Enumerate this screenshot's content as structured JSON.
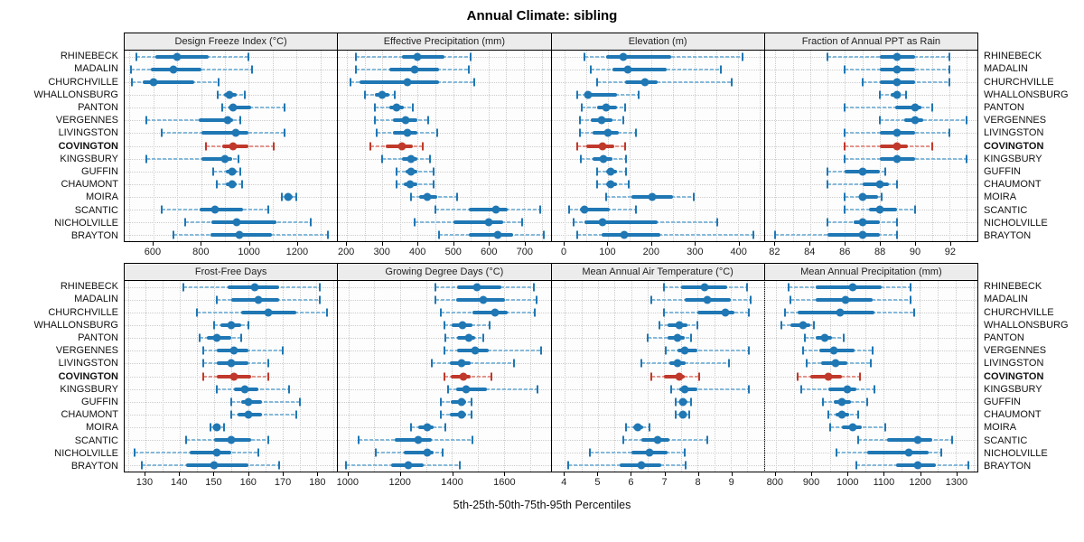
{
  "title": "Annual Climate: sibling",
  "caption": "5th-25th-50th-75th-95th Percentiles",
  "chart_data": {
    "type": "dotplot",
    "subtype": "percentile-interval-plot",
    "percentiles": [
      5,
      25,
      50,
      75,
      95
    ],
    "legend_position": "none",
    "grid": "dotted",
    "sites": [
      "RHINEBECK",
      "MADALIN",
      "CHURCHVILLE",
      "WHALLONSBURG",
      "PANTON",
      "VERGENNES",
      "LIVINGSTON",
      "COVINGTON",
      "KINGSBURY",
      "GUFFIN",
      "CHAUMONT",
      "MOIRA",
      "SCANTIC",
      "NICHOLVILLE",
      "BRAYTON"
    ],
    "highlight_site": "COVINGTON",
    "colors": {
      "series": "#1f77b4",
      "series_light": "#85b9da",
      "highlight": "#c0392b",
      "highlight_light": "#e2958d",
      "grid": "#cccccc",
      "strip_bg": "#ececec",
      "border": "#000000"
    },
    "panels": [
      {
        "title": "Design Freeze Index (°C)",
        "xlim": [
          480,
          1370
        ],
        "ticks": [
          600,
          800,
          1000,
          1200
        ],
        "rows": [
          [
            530,
            610,
            700,
            830,
            1000
          ],
          [
            505,
            590,
            685,
            800,
            1015
          ],
          [
            510,
            555,
            600,
            770,
            875
          ],
          [
            870,
            895,
            920,
            950,
            985
          ],
          [
            890,
            915,
            935,
            1010,
            1150
          ],
          [
            570,
            790,
            910,
            935,
            965
          ],
          [
            635,
            800,
            945,
            1000,
            1150
          ],
          [
            820,
            890,
            935,
            1000,
            1105
          ],
          [
            570,
            800,
            900,
            930,
            955
          ],
          [
            850,
            905,
            930,
            950,
            965
          ],
          [
            865,
            905,
            930,
            950,
            970
          ],
          [
            1140,
            1155,
            1165,
            1185,
            1200
          ],
          [
            635,
            795,
            860,
            975,
            1080
          ],
          [
            735,
            845,
            950,
            1115,
            1260
          ],
          [
            685,
            840,
            960,
            1095,
            1330
          ]
        ]
      },
      {
        "title": "Effective Precipitation (mm)",
        "xlim": [
          175,
          775
        ],
        "ticks": [
          200,
          300,
          400,
          500,
          600,
          700
        ],
        "rows": [
          [
            225,
            355,
            400,
            475,
            550
          ],
          [
            225,
            320,
            390,
            460,
            545
          ],
          [
            210,
            235,
            370,
            460,
            560
          ],
          [
            250,
            280,
            300,
            320,
            335
          ],
          [
            280,
            320,
            340,
            360,
            385
          ],
          [
            280,
            330,
            365,
            400,
            430
          ],
          [
            285,
            330,
            370,
            400,
            455
          ],
          [
            265,
            310,
            355,
            385,
            415
          ],
          [
            300,
            355,
            380,
            400,
            435
          ],
          [
            340,
            365,
            380,
            400,
            445
          ],
          [
            340,
            360,
            378,
            400,
            445
          ],
          [
            380,
            405,
            428,
            455,
            510
          ],
          [
            450,
            545,
            620,
            655,
            745
          ],
          [
            390,
            500,
            600,
            640,
            695
          ],
          [
            460,
            545,
            625,
            670,
            755
          ]
        ]
      },
      {
        "title": "Elevation (m)",
        "xlim": [
          -30,
          460
        ],
        "ticks": [
          0,
          100,
          200,
          300,
          400
        ],
        "rows": [
          [
            45,
            95,
            135,
            245,
            410
          ],
          [
            60,
            110,
            145,
            235,
            360
          ],
          [
            75,
            140,
            185,
            215,
            385
          ],
          [
            30,
            45,
            55,
            120,
            170
          ],
          [
            40,
            75,
            95,
            120,
            140
          ],
          [
            35,
            60,
            85,
            110,
            135
          ],
          [
            35,
            65,
            100,
            125,
            165
          ],
          [
            30,
            50,
            87,
            115,
            140
          ],
          [
            38,
            65,
            90,
            110,
            142
          ],
          [
            75,
            95,
            107,
            120,
            142
          ],
          [
            75,
            95,
            107,
            122,
            148
          ],
          [
            95,
            155,
            202,
            250,
            298
          ],
          [
            10,
            35,
            45,
            105,
            165
          ],
          [
            20,
            45,
            88,
            215,
            352
          ],
          [
            30,
            85,
            137,
            220,
            435
          ]
        ]
      },
      {
        "title": "Fraction of Annual PPT as Rain",
        "xlim": [
          81.4,
          93.6
        ],
        "ticks": [
          82,
          84,
          86,
          88,
          90,
          92
        ],
        "rows": [
          [
            85,
            88,
            89,
            90,
            92
          ],
          [
            86,
            88,
            89,
            90,
            92
          ],
          [
            87,
            88,
            89,
            90,
            92
          ],
          [
            88,
            88.6,
            89,
            89.2,
            89.5
          ],
          [
            86,
            88.9,
            90,
            90.4,
            91
          ],
          [
            88,
            89.4,
            90,
            90.5,
            93
          ],
          [
            86,
            88,
            89,
            90,
            92
          ],
          [
            86,
            88,
            89,
            89.6,
            91
          ],
          [
            86,
            88,
            89,
            90,
            93
          ],
          [
            85,
            86,
            87,
            88,
            88.3
          ],
          [
            85,
            87,
            88,
            88.5,
            89
          ],
          [
            86,
            86.8,
            87,
            87.9,
            88.1
          ],
          [
            86,
            87.4,
            88,
            89,
            90
          ],
          [
            85,
            86.5,
            87,
            88,
            89
          ],
          [
            82,
            85,
            87,
            88,
            89
          ]
        ]
      },
      {
        "title": "Frost-Free Days",
        "xlim": [
          124,
          186
        ],
        "ticks": [
          130,
          140,
          150,
          160,
          170,
          180
        ],
        "rows": [
          [
            141,
            154,
            162,
            169,
            181
          ],
          [
            151,
            155,
            163,
            169,
            181
          ],
          [
            145,
            158,
            166,
            174,
            183
          ],
          [
            150,
            152,
            155,
            158,
            160
          ],
          [
            146,
            148,
            151,
            155,
            158
          ],
          [
            147,
            151,
            156,
            160,
            170
          ],
          [
            147,
            151,
            155,
            160,
            166
          ],
          [
            147,
            151,
            156,
            161,
            166
          ],
          [
            151,
            156,
            159,
            163,
            172
          ],
          [
            155,
            158,
            160,
            164,
            175
          ],
          [
            155,
            157,
            160,
            164,
            174
          ],
          [
            149,
            150,
            151,
            152,
            153
          ],
          [
            142,
            150,
            155,
            161,
            166
          ],
          [
            127,
            143,
            151,
            155,
            163
          ],
          [
            129,
            142,
            150,
            160,
            169
          ]
        ]
      },
      {
        "title": "Growing Degree Days (°C)",
        "xlim": [
          960,
          1780
        ],
        "ticks": [
          1000,
          1200,
          1400,
          1600
        ],
        "rows": [
          [
            1335,
            1420,
            1495,
            1590,
            1715
          ],
          [
            1335,
            1415,
            1520,
            1605,
            1725
          ],
          [
            1355,
            1480,
            1565,
            1615,
            1720
          ],
          [
            1370,
            1400,
            1440,
            1480,
            1545
          ],
          [
            1375,
            1420,
            1465,
            1490,
            1520
          ],
          [
            1370,
            1420,
            1490,
            1540,
            1745
          ],
          [
            1320,
            1390,
            1435,
            1470,
            1640
          ],
          [
            1370,
            1395,
            1445,
            1470,
            1550
          ],
          [
            1385,
            1415,
            1455,
            1535,
            1730
          ],
          [
            1355,
            1395,
            1435,
            1455,
            1475
          ],
          [
            1355,
            1390,
            1435,
            1455,
            1475
          ],
          [
            1240,
            1270,
            1305,
            1330,
            1375
          ],
          [
            1040,
            1180,
            1270,
            1320,
            1480
          ],
          [
            1105,
            1215,
            1305,
            1330,
            1365
          ],
          [
            990,
            1165,
            1230,
            1290,
            1430
          ]
        ]
      },
      {
        "title": "Mean Annual Air Temperature (°C)",
        "xlim": [
          3.6,
          10.0
        ],
        "ticks": [
          4,
          5,
          6,
          7,
          8,
          9
        ],
        "rows": [
          [
            7.0,
            7.5,
            8.2,
            8.9,
            9.5
          ],
          [
            6.6,
            7.6,
            8.3,
            9.0,
            9.6
          ],
          [
            7.0,
            8.0,
            8.85,
            9.1,
            9.55
          ],
          [
            6.85,
            7.1,
            7.45,
            7.7,
            8.0
          ],
          [
            6.5,
            7.1,
            7.4,
            7.6,
            7.8
          ],
          [
            7.05,
            7.4,
            7.6,
            8.0,
            9.55
          ],
          [
            6.3,
            7.15,
            7.4,
            7.65,
            8.95
          ],
          [
            6.6,
            7.0,
            7.45,
            7.6,
            8.05
          ],
          [
            7.2,
            7.45,
            7.6,
            8.0,
            9.55
          ],
          [
            7.35,
            7.5,
            7.55,
            7.7,
            7.8
          ],
          [
            7.35,
            7.45,
            7.55,
            7.65,
            7.75
          ],
          [
            5.85,
            6.05,
            6.2,
            6.35,
            6.55
          ],
          [
            5.75,
            6.3,
            6.8,
            7.15,
            8.3
          ],
          [
            4.75,
            6.0,
            6.55,
            7.1,
            7.6
          ],
          [
            4.1,
            5.65,
            6.3,
            6.9,
            7.65
          ]
        ]
      },
      {
        "title": "Mean Annual Precipitation (mm)",
        "xlim": [
          770,
          1360
        ],
        "ticks": [
          800,
          900,
          1000,
          1100,
          1200,
          1300
        ],
        "rows": [
          [
            835,
            910,
            1015,
            1095,
            1175
          ],
          [
            840,
            910,
            995,
            1070,
            1175
          ],
          [
            825,
            860,
            980,
            1075,
            1185
          ],
          [
            815,
            840,
            875,
            895,
            905
          ],
          [
            880,
            910,
            935,
            955,
            990
          ],
          [
            875,
            920,
            960,
            1020,
            1070
          ],
          [
            885,
            925,
            965,
            1000,
            1065
          ],
          [
            860,
            895,
            945,
            985,
            1035
          ],
          [
            870,
            945,
            1000,
            1025,
            1075
          ],
          [
            930,
            960,
            985,
            1010,
            1055
          ],
          [
            945,
            965,
            985,
            1005,
            1030
          ],
          [
            950,
            985,
            1015,
            1040,
            1105
          ],
          [
            1030,
            1110,
            1195,
            1235,
            1290
          ],
          [
            970,
            1055,
            1170,
            1225,
            1260
          ],
          [
            1025,
            1135,
            1195,
            1245,
            1335
          ]
        ]
      }
    ]
  }
}
